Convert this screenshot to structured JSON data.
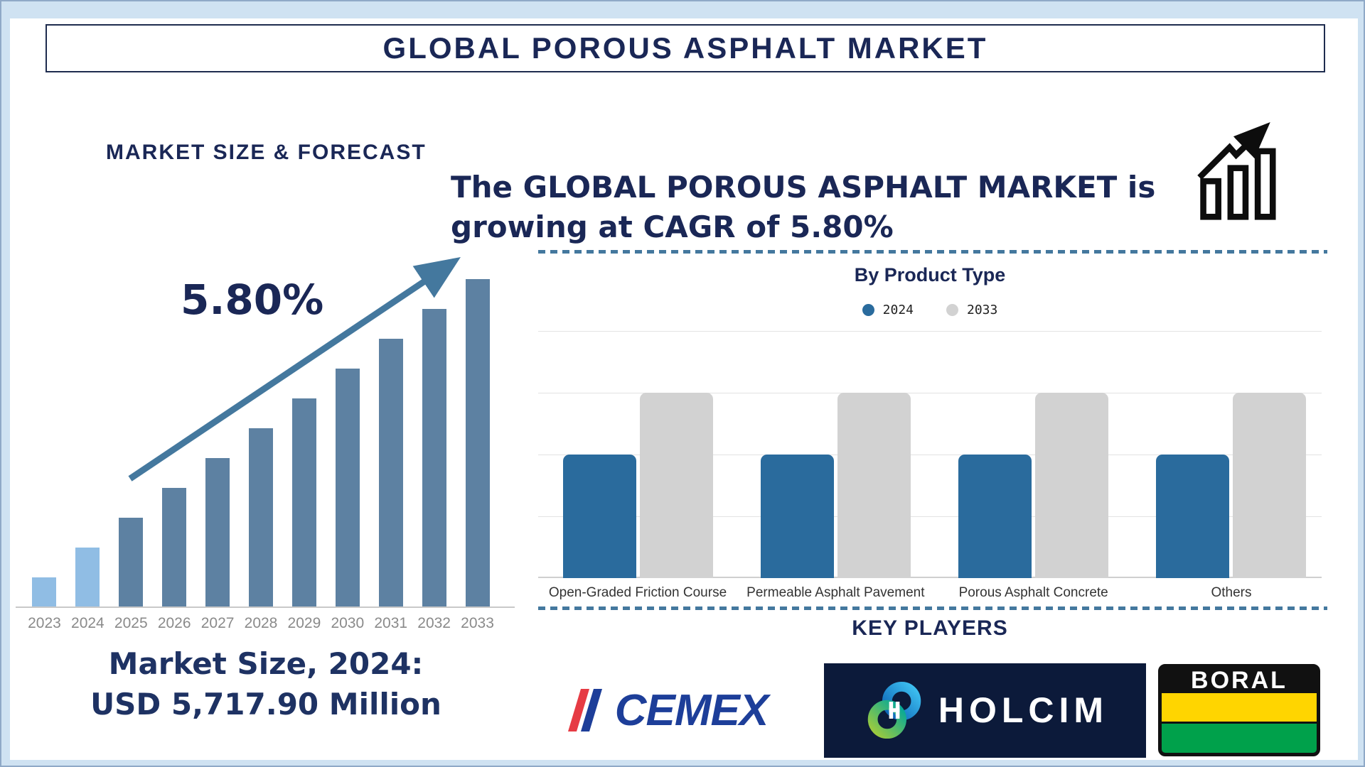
{
  "page": {
    "title": "GLOBAL POROUS ASPHALT MARKET"
  },
  "forecast": {
    "heading": "MARKET SIZE & FORECAST",
    "cagr_label": "5.80%",
    "market_size_line1": "Market Size, 2024:",
    "market_size_line2": "USD 5,717.90 Million"
  },
  "growth_note": {
    "text": "The GLOBAL POROUS ASPHALT MARKET is growing at CAGR of 5.80%"
  },
  "product_type": {
    "heading": "By Product Type"
  },
  "key_players": {
    "heading": "KEY PLAYERS",
    "companies": [
      {
        "name": "CEMEX"
      },
      {
        "name": "HOLCIM"
      },
      {
        "name": "BORAL"
      }
    ]
  },
  "colors": {
    "navy_text": "#1a2756",
    "steel_accent": "#44789e",
    "page_border_blue": "#cfe2f2"
  },
  "chart_data": [
    {
      "type": "bar",
      "title": "MARKET SIZE & FORECAST",
      "x": [
        2023,
        2024,
        2025,
        2026,
        2027,
        2028,
        2029,
        2030,
        2031,
        2032,
        2033
      ],
      "values_relative_units": [
        1,
        2,
        3,
        4,
        5,
        6,
        7,
        8,
        9,
        10,
        11
      ],
      "value_note": "no y-axis shown; bars rise in equal linear steps",
      "annotation": "5.80%",
      "known_point": {
        "year": 2024,
        "value": "USD 5,717.90 Million"
      },
      "highlight_years": [
        2023,
        2024
      ],
      "colors": {
        "highlight": "#90bde4",
        "default": "#5d81a2"
      },
      "grid": false,
      "xlabel": "",
      "ylabel": ""
    },
    {
      "type": "bar",
      "title": "By Product Type",
      "categories": [
        "Open-Graded Friction Course",
        "Permeable Asphalt Pavement",
        "Porous Asphalt Concrete",
        "Others"
      ],
      "series": [
        {
          "name": "2024",
          "values": [
            2,
            2,
            2,
            2
          ],
          "color": "#2a6b9d"
        },
        {
          "name": "2033",
          "values": [
            3,
            3,
            3,
            3
          ],
          "color": "#d2d2d2"
        }
      ],
      "ylim": [
        0,
        4
      ],
      "value_note": "relative units; no y-axis labels shown",
      "legend_position": "top",
      "grid": true,
      "xlabel": "",
      "ylabel": ""
    }
  ]
}
